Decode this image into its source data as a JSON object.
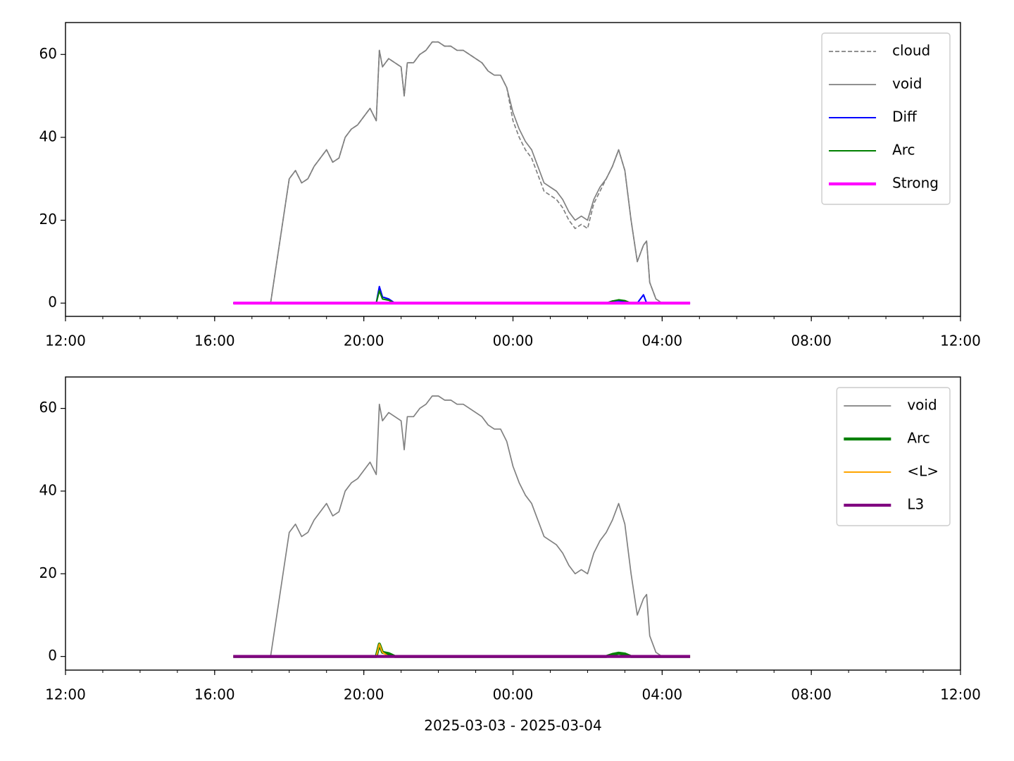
{
  "chart_data": [
    {
      "type": "line",
      "x": [
        "2025-03-03 16:30",
        "2025-03-03 16:40",
        "2025-03-03 16:50",
        "2025-03-03 17:00",
        "2025-03-03 17:10",
        "2025-03-03 17:20",
        "2025-03-03 17:30",
        "2025-03-03 17:40",
        "2025-03-03 17:50",
        "2025-03-03 18:00",
        "2025-03-03 18:10",
        "2025-03-03 18:20",
        "2025-03-03 18:30",
        "2025-03-03 18:40",
        "2025-03-03 18:50",
        "2025-03-03 19:00",
        "2025-03-03 19:10",
        "2025-03-03 19:20",
        "2025-03-03 19:30",
        "2025-03-03 19:40",
        "2025-03-03 19:50",
        "2025-03-03 20:00",
        "2025-03-03 20:10",
        "2025-03-03 20:20",
        "2025-03-03 20:25",
        "2025-03-03 20:30",
        "2025-03-03 20:40",
        "2025-03-03 20:50",
        "2025-03-03 21:00",
        "2025-03-03 21:05",
        "2025-03-03 21:10",
        "2025-03-03 21:20",
        "2025-03-03 21:30",
        "2025-03-03 21:40",
        "2025-03-03 21:50",
        "2025-03-03 22:00",
        "2025-03-03 22:10",
        "2025-03-03 22:20",
        "2025-03-03 22:30",
        "2025-03-03 22:40",
        "2025-03-03 22:50",
        "2025-03-03 23:00",
        "2025-03-03 23:10",
        "2025-03-03 23:20",
        "2025-03-03 23:30",
        "2025-03-03 23:40",
        "2025-03-03 23:50",
        "2025-03-04 00:00",
        "2025-03-04 00:10",
        "2025-03-04 00:20",
        "2025-03-04 00:30",
        "2025-03-04 00:40",
        "2025-03-04 00:50",
        "2025-03-04 01:00",
        "2025-03-04 01:10",
        "2025-03-04 01:20",
        "2025-03-04 01:30",
        "2025-03-04 01:40",
        "2025-03-04 01:50",
        "2025-03-04 02:00",
        "2025-03-04 02:10",
        "2025-03-04 02:20",
        "2025-03-04 02:30",
        "2025-03-04 02:40",
        "2025-03-04 02:50",
        "2025-03-04 03:00",
        "2025-03-04 03:10",
        "2025-03-04 03:20",
        "2025-03-04 03:30",
        "2025-03-04 03:35",
        "2025-03-04 03:40",
        "2025-03-04 03:50",
        "2025-03-04 04:00",
        "2025-03-04 04:10",
        "2025-03-04 04:20",
        "2025-03-04 04:30",
        "2025-03-04 04:40",
        "2025-03-04 04:45"
      ],
      "series": [
        {
          "name": "cloud",
          "color": "#808080",
          "linewidth": 1.2,
          "dashed": true,
          "values": [
            0,
            0,
            0,
            0,
            0,
            0,
            0,
            10,
            20,
            30,
            32,
            29,
            30,
            33,
            35,
            37,
            34,
            35,
            40,
            42,
            43,
            45,
            47,
            44,
            61,
            57,
            59,
            58,
            57,
            50,
            58,
            58,
            60,
            61,
            63,
            63,
            62,
            62,
            61,
            61,
            60,
            59,
            58,
            56,
            55,
            55,
            52,
            44,
            40,
            37,
            35,
            31,
            27,
            26,
            25,
            23,
            20,
            18,
            19,
            18,
            24,
            27,
            30,
            33,
            37,
            32,
            20,
            10,
            14,
            15,
            5,
            1,
            0,
            0,
            0,
            0,
            0,
            0
          ]
        },
        {
          "name": "void",
          "color": "#808080",
          "linewidth": 1.2,
          "values": [
            0,
            0,
            0,
            0,
            0,
            0,
            0,
            10,
            20,
            30,
            32,
            29,
            30,
            33,
            35,
            37,
            34,
            35,
            40,
            42,
            43,
            45,
            47,
            44,
            61,
            57,
            59,
            58,
            57,
            50,
            58,
            58,
            60,
            61,
            63,
            63,
            62,
            62,
            61,
            61,
            60,
            59,
            58,
            56,
            55,
            55,
            52,
            46,
            42,
            39,
            37,
            33,
            29,
            28,
            27,
            25,
            22,
            20,
            21,
            20,
            25,
            28,
            30,
            33,
            37,
            32,
            20,
            10,
            14,
            15,
            5,
            1,
            0,
            0,
            0,
            0,
            0,
            0
          ]
        },
        {
          "name": "Diff",
          "color": "#0000ff",
          "linewidth": 1.5,
          "values": [
            0,
            0,
            0,
            0,
            0,
            0,
            0,
            0,
            0,
            0,
            0,
            0,
            0,
            0,
            0,
            0,
            0,
            0,
            0,
            0,
            0,
            0,
            0,
            0,
            4,
            1.5,
            1,
            0,
            0,
            0,
            0,
            0,
            0,
            0,
            0,
            0,
            0,
            0,
            0,
            0,
            0,
            0,
            0,
            0,
            0,
            0,
            0,
            0,
            0,
            0,
            0,
            0,
            0,
            0,
            0,
            0,
            0,
            0,
            0,
            0,
            0,
            0,
            0,
            0.5,
            0.6,
            0.4,
            0,
            0,
            2,
            0,
            0,
            0,
            0,
            0,
            0,
            0,
            0,
            0
          ]
        },
        {
          "name": "Arc",
          "color": "#008000",
          "linewidth": 1.5,
          "values": [
            0,
            0,
            0,
            0,
            0,
            0,
            0,
            0,
            0,
            0,
            0,
            0,
            0,
            0,
            0,
            0,
            0,
            0,
            0,
            0,
            0,
            0,
            0,
            0,
            3,
            1,
            0.7,
            0,
            0,
            0,
            0,
            0,
            0,
            0,
            0,
            0,
            0,
            0,
            0,
            0,
            0,
            0,
            0,
            0,
            0,
            0,
            0,
            0,
            0,
            0,
            0,
            0,
            0,
            0,
            0,
            0,
            0,
            0,
            0,
            0,
            0,
            0,
            0,
            0.5,
            0.8,
            0.6,
            0,
            0,
            0,
            0,
            0,
            0,
            0,
            0,
            0,
            0,
            0,
            0
          ]
        },
        {
          "name": "Strong",
          "color": "#ff00ff",
          "linewidth": 3,
          "values": [
            0,
            0,
            0,
            0,
            0,
            0,
            0,
            0,
            0,
            0,
            0,
            0,
            0,
            0,
            0,
            0,
            0,
            0,
            0,
            0,
            0,
            0,
            0,
            0,
            0,
            0,
            0,
            0,
            0,
            0,
            0,
            0,
            0,
            0,
            0,
            0,
            0,
            0,
            0,
            0,
            0,
            0,
            0,
            0,
            0,
            0,
            0,
            0,
            0,
            0,
            0,
            0,
            0,
            0,
            0,
            0,
            0,
            0,
            0,
            0,
            0,
            0,
            0,
            0,
            0,
            0,
            0,
            0,
            0,
            0,
            0,
            0,
            0,
            0,
            0,
            0,
            0,
            0
          ]
        }
      ],
      "xlim": [
        "2025-03-03 12:00",
        "2025-03-04 12:00"
      ],
      "xticks": [
        {
          "value": "2025-03-03 12:00",
          "label": "12:00"
        },
        {
          "value": "2025-03-03 16:00",
          "label": "16:00"
        },
        {
          "value": "2025-03-03 20:00",
          "label": "20:00"
        },
        {
          "value": "2025-03-04 00:00",
          "label": "00:00"
        },
        {
          "value": "2025-03-04 04:00",
          "label": "04:00"
        },
        {
          "value": "2025-03-04 08:00",
          "label": "08:00"
        },
        {
          "value": "2025-03-04 12:00",
          "label": "12:00"
        }
      ],
      "ylim": [
        -3.2,
        67.7
      ],
      "yticks": [
        0,
        20,
        40,
        60
      ],
      "legend": "upper right"
    },
    {
      "type": "line",
      "x": [
        "2025-03-03 16:30",
        "2025-03-03 16:40",
        "2025-03-03 16:50",
        "2025-03-03 17:00",
        "2025-03-03 17:10",
        "2025-03-03 17:20",
        "2025-03-03 17:30",
        "2025-03-03 17:40",
        "2025-03-03 17:50",
        "2025-03-03 18:00",
        "2025-03-03 18:10",
        "2025-03-03 18:20",
        "2025-03-03 18:30",
        "2025-03-03 18:40",
        "2025-03-03 18:50",
        "2025-03-03 19:00",
        "2025-03-03 19:10",
        "2025-03-03 19:20",
        "2025-03-03 19:30",
        "2025-03-03 19:40",
        "2025-03-03 19:50",
        "2025-03-03 20:00",
        "2025-03-03 20:10",
        "2025-03-03 20:20",
        "2025-03-03 20:25",
        "2025-03-03 20:30",
        "2025-03-03 20:40",
        "2025-03-03 20:50",
        "2025-03-03 21:00",
        "2025-03-03 21:05",
        "2025-03-03 21:10",
        "2025-03-03 21:20",
        "2025-03-03 21:30",
        "2025-03-03 21:40",
        "2025-03-03 21:50",
        "2025-03-03 22:00",
        "2025-03-03 22:10",
        "2025-03-03 22:20",
        "2025-03-03 22:30",
        "2025-03-03 22:40",
        "2025-03-03 22:50",
        "2025-03-03 23:00",
        "2025-03-03 23:10",
        "2025-03-03 23:20",
        "2025-03-03 23:30",
        "2025-03-03 23:40",
        "2025-03-03 23:50",
        "2025-03-04 00:00",
        "2025-03-04 00:10",
        "2025-03-04 00:20",
        "2025-03-04 00:30",
        "2025-03-04 00:40",
        "2025-03-04 00:50",
        "2025-03-04 01:00",
        "2025-03-04 01:10",
        "2025-03-04 01:20",
        "2025-03-04 01:30",
        "2025-03-04 01:40",
        "2025-03-04 01:50",
        "2025-03-04 02:00",
        "2025-03-04 02:10",
        "2025-03-04 02:20",
        "2025-03-04 02:30",
        "2025-03-04 02:40",
        "2025-03-04 02:50",
        "2025-03-04 03:00",
        "2025-03-04 03:10",
        "2025-03-04 03:20",
        "2025-03-04 03:30",
        "2025-03-04 03:35",
        "2025-03-04 03:40",
        "2025-03-04 03:50",
        "2025-03-04 04:00",
        "2025-03-04 04:10",
        "2025-03-04 04:20",
        "2025-03-04 04:30",
        "2025-03-04 04:40",
        "2025-03-04 04:45"
      ],
      "series": [
        {
          "name": "void",
          "color": "#808080",
          "linewidth": 1.2,
          "values": [
            0,
            0,
            0,
            0,
            0,
            0,
            0,
            10,
            20,
            30,
            32,
            29,
            30,
            33,
            35,
            37,
            34,
            35,
            40,
            42,
            43,
            45,
            47,
            44,
            61,
            57,
            59,
            58,
            57,
            50,
            58,
            58,
            60,
            61,
            63,
            63,
            62,
            62,
            61,
            61,
            60,
            59,
            58,
            56,
            55,
            55,
            52,
            46,
            42,
            39,
            37,
            33,
            29,
            28,
            27,
            25,
            22,
            20,
            21,
            20,
            25,
            28,
            30,
            33,
            37,
            32,
            20,
            10,
            14,
            15,
            5,
            1,
            0,
            0,
            0,
            0,
            0,
            0
          ]
        },
        {
          "name": "Arc",
          "color": "#008000",
          "linewidth": 3,
          "values": [
            0,
            0,
            0,
            0,
            0,
            0,
            0,
            0,
            0,
            0,
            0,
            0,
            0,
            0,
            0,
            0,
            0,
            0,
            0,
            0,
            0,
            0,
            0,
            0,
            3,
            1,
            0.7,
            0,
            0,
            0,
            0,
            0,
            0,
            0,
            0,
            0,
            0,
            0,
            0,
            0,
            0,
            0,
            0,
            0,
            0,
            0,
            0,
            0,
            0,
            0,
            0,
            0,
            0,
            0,
            0,
            0,
            0,
            0,
            0,
            0,
            0,
            0,
            0,
            0.5,
            0.8,
            0.6,
            0,
            0,
            0,
            0,
            0,
            0,
            0,
            0,
            0,
            0,
            0,
            0
          ]
        },
        {
          "name": "<L>",
          "color": "#ffa500",
          "linewidth": 1.5,
          "values": [
            0,
            0,
            0,
            0,
            0,
            0,
            0,
            0,
            0,
            0,
            0,
            0,
            0,
            0,
            0,
            0,
            0,
            0,
            0,
            0,
            0,
            0,
            0,
            0,
            3,
            1,
            0,
            0,
            0,
            0,
            0,
            0,
            0,
            0,
            0,
            0,
            0,
            0,
            0,
            0,
            0,
            0,
            0,
            0,
            0,
            0,
            0,
            0,
            0,
            0,
            0,
            0,
            0,
            0,
            0,
            0,
            0,
            0,
            0,
            0,
            0,
            0,
            0,
            0,
            0,
            0,
            0,
            0,
            0,
            0,
            0,
            0,
            0,
            0,
            0,
            0,
            0,
            0
          ]
        },
        {
          "name": "L3",
          "color": "#800080",
          "linewidth": 3,
          "values": [
            0,
            0,
            0,
            0,
            0,
            0,
            0,
            0,
            0,
            0,
            0,
            0,
            0,
            0,
            0,
            0,
            0,
            0,
            0,
            0,
            0,
            0,
            0,
            0,
            0,
            0,
            0,
            0,
            0,
            0,
            0,
            0,
            0,
            0,
            0,
            0,
            0,
            0,
            0,
            0,
            0,
            0,
            0,
            0,
            0,
            0,
            0,
            0,
            0,
            0,
            0,
            0,
            0,
            0,
            0,
            0,
            0,
            0,
            0,
            0,
            0,
            0,
            0,
            0,
            0,
            0,
            0,
            0,
            0,
            0,
            0,
            0,
            0,
            0,
            0,
            0,
            0,
            0
          ]
        }
      ],
      "xlim": [
        "2025-03-03 12:00",
        "2025-03-04 12:00"
      ],
      "xticks": [
        {
          "value": "2025-03-03 12:00",
          "label": "12:00"
        },
        {
          "value": "2025-03-03 16:00",
          "label": "16:00"
        },
        {
          "value": "2025-03-03 20:00",
          "label": "20:00"
        },
        {
          "value": "2025-03-04 00:00",
          "label": "00:00"
        },
        {
          "value": "2025-03-04 04:00",
          "label": "04:00"
        },
        {
          "value": "2025-03-04 08:00",
          "label": "08:00"
        },
        {
          "value": "2025-03-04 12:00",
          "label": "12:00"
        }
      ],
      "xlabel": "2025-03-03 - 2025-03-04",
      "ylim": [
        -3.3,
        67.6
      ],
      "yticks": [
        0,
        20,
        40,
        60
      ],
      "legend": "upper right"
    }
  ]
}
